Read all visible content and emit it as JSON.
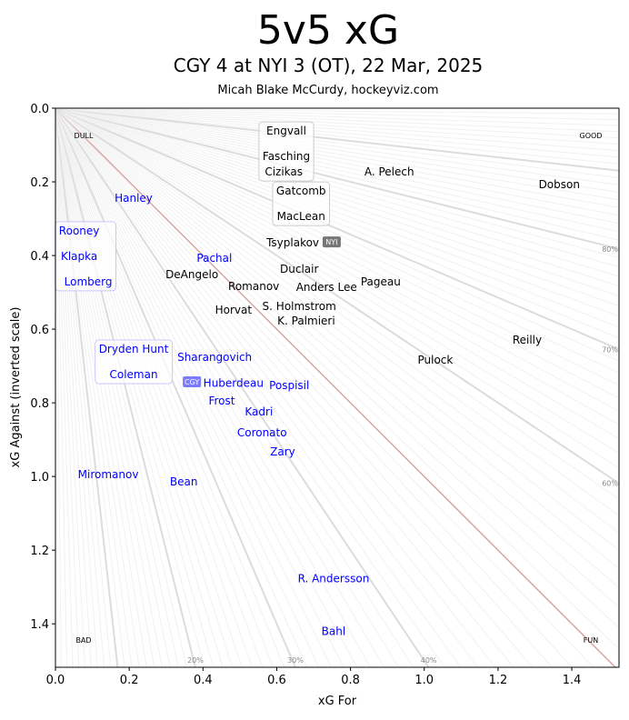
{
  "chart_data": {
    "type": "scatter",
    "title": "5v5 xG",
    "subtitle": "CGY 4 at NYI 3 (OT), 22 Mar, 2025",
    "credit": "Micah Blake McCurdy, hockeyviz.com",
    "xlabel": "xG For",
    "ylabel": "xG Against (inverted scale)",
    "xlim": [
      0,
      1.528
    ],
    "ylim": [
      0,
      1.518
    ],
    "y_inverted": true,
    "xticks": [
      "0.0",
      "0.2",
      "0.4",
      "0.6",
      "0.8",
      "1.0",
      "1.2",
      "1.4"
    ],
    "yticks": [
      "0.0",
      "0.2",
      "0.4",
      "0.6",
      "0.8",
      "1.0",
      "1.2",
      "1.4"
    ],
    "corner_labels": {
      "top_left": "DULL",
      "top_right": "GOOD",
      "bottom_left": "BAD",
      "bottom_right": "FUN"
    },
    "contour_labels": [
      {
        "text": "80%",
        "pct": 80
      },
      {
        "text": "70%",
        "pct": 70
      },
      {
        "text": "60%",
        "pct": 60
      },
      {
        "text": "20%",
        "pct": 20
      },
      {
        "text": "30%",
        "pct": 30
      },
      {
        "text": "40%",
        "pct": 40
      }
    ],
    "colors": {
      "NYI": "#000000",
      "CGY": "#0000ff",
      "NYI_marker": "#777777",
      "CGY_marker": "#7b7bff",
      "diagonal": "#d9a3a3"
    },
    "teams": [
      {
        "team": "NYI",
        "label": "NYI",
        "x": 0.749,
        "y": 0.363
      },
      {
        "team": "CGY",
        "label": "CGY",
        "x": 0.37,
        "y": 0.743
      }
    ],
    "players": [
      {
        "name": "Engvall",
        "team": "NYI",
        "x": 0.626,
        "y": 0.062
      },
      {
        "name": "Fasching",
        "team": "NYI",
        "x": 0.626,
        "y": 0.099
      },
      {
        "name": "Cizikas",
        "team": "NYI",
        "x": 0.619,
        "y": 0.109
      },
      {
        "name": "A. Pelech",
        "team": "NYI",
        "x": 0.905,
        "y": 0.173
      },
      {
        "name": "Dobson",
        "team": "NYI",
        "x": 1.366,
        "y": 0.207
      },
      {
        "name": "Gatcomb",
        "team": "NYI",
        "x": 0.666,
        "y": 0.225
      },
      {
        "name": "MacLean",
        "team": "NYI",
        "x": 0.666,
        "y": 0.262
      },
      {
        "name": "Tsyplakov",
        "team": "NYI",
        "x": 0.668,
        "y": 0.301
      },
      {
        "name": "Duclair",
        "team": "NYI",
        "x": 0.661,
        "y": 0.437
      },
      {
        "name": "Anders Lee",
        "team": "NYI",
        "x": 0.735,
        "y": 0.454
      },
      {
        "name": "S. Holmstrom",
        "team": "NYI",
        "x": 0.661,
        "y": 0.474
      },
      {
        "name": "K. Palmieri",
        "team": "NYI",
        "x": 0.68,
        "y": 0.514
      },
      {
        "name": "Pageau",
        "team": "NYI",
        "x": 0.882,
        "y": 0.472
      },
      {
        "name": "DeAngelo",
        "team": "NYI",
        "x": 0.37,
        "y": 0.452
      },
      {
        "name": "Romanov",
        "team": "NYI",
        "x": 0.513,
        "y": 0.484
      },
      {
        "name": "Horvat",
        "team": "NYI",
        "x": 0.532,
        "y": 0.516
      },
      {
        "name": "Reilly",
        "team": "NYI",
        "x": 1.279,
        "y": 0.63
      },
      {
        "name": "Pulock",
        "team": "NYI",
        "x": 1.03,
        "y": 0.684
      },
      {
        "name": "Hanley",
        "team": "CGY",
        "x": 0.212,
        "y": 0.244
      },
      {
        "name": "Rooney",
        "team": "CGY",
        "x": 0.015,
        "y": 0.333
      },
      {
        "name": "Klapka",
        "team": "CGY",
        "x": 0.015,
        "y": 0.37
      },
      {
        "name": "Lomberg",
        "team": "CGY",
        "x": 0.015,
        "y": 0.407
      },
      {
        "name": "Pachal",
        "team": "CGY",
        "x": 0.431,
        "y": 0.407
      },
      {
        "name": "Dryden Hunt",
        "team": "CGY",
        "x": 0.212,
        "y": 0.654
      },
      {
        "name": "Coleman",
        "team": "CGY",
        "x": 0.212,
        "y": 0.691
      },
      {
        "name": "Sharangovich",
        "team": "CGY",
        "x": 0.333,
        "y": 0.709
      },
      {
        "name": "Huberdeau",
        "team": "CGY",
        "x": 0.458,
        "y": 0.714
      },
      {
        "name": "Pospisil",
        "team": "CGY",
        "x": 0.56,
        "y": 0.753
      },
      {
        "name": "Frost",
        "team": "CGY",
        "x": 0.451,
        "y": 0.795
      },
      {
        "name": "Kadri",
        "team": "CGY",
        "x": 0.527,
        "y": 0.825
      },
      {
        "name": "Coronato",
        "team": "CGY",
        "x": 0.56,
        "y": 0.881
      },
      {
        "name": "Zary",
        "team": "CGY",
        "x": 0.616,
        "y": 0.901
      },
      {
        "name": "Miromanov",
        "team": "CGY",
        "x": 0.143,
        "y": 0.995
      },
      {
        "name": "Bean",
        "team": "CGY",
        "x": 0.348,
        "y": 1.015
      },
      {
        "name": "R. Andersson",
        "team": "CGY",
        "x": 0.754,
        "y": 1.277
      },
      {
        "name": "Bahl",
        "team": "CGY",
        "x": 0.754,
        "y": 1.42
      }
    ],
    "label_groups": [
      {
        "team": "NYI",
        "members": [
          "Engvall",
          "Fasching",
          "Cizikas"
        ]
      },
      {
        "team": "NYI",
        "members": [
          "Gatcomb",
          "MacLean"
        ]
      },
      {
        "team": "CGY",
        "members": [
          "Rooney",
          "Klapka",
          "Lomberg"
        ]
      },
      {
        "team": "CGY",
        "members": [
          "Dryden Hunt",
          "Coleman"
        ]
      }
    ]
  }
}
